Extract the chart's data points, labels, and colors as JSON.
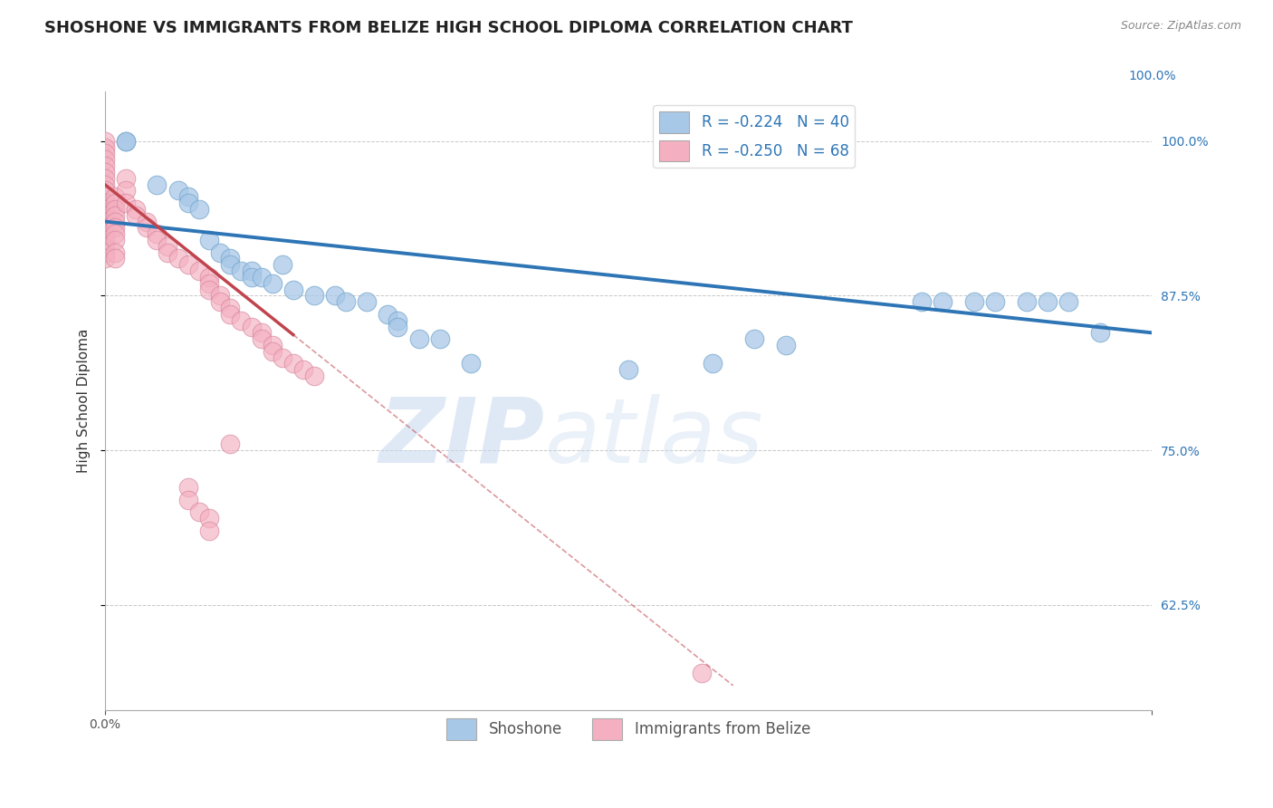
{
  "title": "SHOSHONE VS IMMIGRANTS FROM BELIZE HIGH SCHOOL DIPLOMA CORRELATION CHART",
  "source_text": "Source: ZipAtlas.com",
  "ylabel": "High School Diploma",
  "xlim": [
    0.0,
    1.0
  ],
  "ylim": [
    0.54,
    1.04
  ],
  "ytick_values": [
    0.625,
    0.75,
    0.875,
    1.0
  ],
  "ytick_labels": [
    "62.5%",
    "75.0%",
    "87.5%",
    "100.0%"
  ],
  "xtick_values": [
    0.0,
    1.0
  ],
  "xtick_labels": [
    "0.0%",
    "100.0%"
  ],
  "blue_color": "#a8c8e8",
  "pink_color": "#f4b0c0",
  "blue_line_color": "#2e75b6",
  "pink_line_color": "#c0444e",
  "legend_r_color": "#2e75b6",
  "legend_r_blue": "R = -0.224",
  "legend_n_blue": "N = 40",
  "legend_r_pink": "R = -0.250",
  "legend_n_pink": "N = 68",
  "label_shoshone": "Shoshone",
  "label_belize": "Immigrants from Belize",
  "watermark_zip": "ZIP",
  "watermark_atlas": "atlas",
  "grid_color": "#b0b0b0",
  "background_color": "#ffffff",
  "title_fontsize": 13,
  "axis_label_fontsize": 11,
  "tick_fontsize": 10,
  "legend_fontsize": 12,
  "watermark_color_zip": "#c8d8ee",
  "watermark_color_atlas": "#c8d8ee",
  "right_tick_color": "#2e75b6",
  "blue_scatter_x": [
    0.02,
    0.02,
    0.05,
    0.07,
    0.08,
    0.08,
    0.09,
    0.1,
    0.11,
    0.12,
    0.12,
    0.13,
    0.14,
    0.14,
    0.15,
    0.16,
    0.17,
    0.18,
    0.2,
    0.22,
    0.23,
    0.25,
    0.27,
    0.28,
    0.28,
    0.3,
    0.32,
    0.35,
    0.5,
    0.58,
    0.62,
    0.65,
    0.78,
    0.8,
    0.83,
    0.85,
    0.88,
    0.9,
    0.92,
    0.95
  ],
  "blue_scatter_y": [
    1.0,
    1.0,
    0.965,
    0.96,
    0.955,
    0.95,
    0.945,
    0.92,
    0.91,
    0.905,
    0.9,
    0.895,
    0.895,
    0.89,
    0.89,
    0.885,
    0.9,
    0.88,
    0.875,
    0.875,
    0.87,
    0.87,
    0.86,
    0.855,
    0.85,
    0.84,
    0.84,
    0.82,
    0.815,
    0.82,
    0.84,
    0.835,
    0.87,
    0.87,
    0.87,
    0.87,
    0.87,
    0.87,
    0.87,
    0.845
  ],
  "pink_scatter_x": [
    0.0,
    0.0,
    0.0,
    0.0,
    0.0,
    0.0,
    0.0,
    0.0,
    0.0,
    0.0,
    0.0,
    0.0,
    0.0,
    0.0,
    0.0,
    0.0,
    0.0,
    0.0,
    0.0,
    0.0,
    0.01,
    0.01,
    0.01,
    0.01,
    0.01,
    0.01,
    0.01,
    0.01,
    0.01,
    0.01,
    0.02,
    0.02,
    0.02,
    0.03,
    0.03,
    0.04,
    0.04,
    0.05,
    0.05,
    0.06,
    0.06,
    0.07,
    0.08,
    0.09,
    0.1,
    0.1,
    0.1,
    0.11,
    0.11,
    0.12,
    0.12,
    0.13,
    0.14,
    0.15,
    0.15,
    0.16,
    0.16,
    0.17,
    0.18,
    0.19,
    0.2,
    0.12,
    0.08,
    0.08,
    0.09,
    0.1,
    0.57,
    0.1
  ],
  "pink_scatter_y": [
    1.0,
    0.995,
    0.99,
    0.985,
    0.98,
    0.975,
    0.97,
    0.965,
    0.96,
    0.955,
    0.95,
    0.945,
    0.94,
    0.935,
    0.93,
    0.925,
    0.92,
    0.915,
    0.91,
    0.905,
    0.955,
    0.95,
    0.945,
    0.94,
    0.935,
    0.93,
    0.925,
    0.92,
    0.91,
    0.905,
    0.97,
    0.96,
    0.95,
    0.945,
    0.94,
    0.935,
    0.93,
    0.925,
    0.92,
    0.915,
    0.91,
    0.905,
    0.9,
    0.895,
    0.89,
    0.885,
    0.88,
    0.875,
    0.87,
    0.865,
    0.86,
    0.855,
    0.85,
    0.845,
    0.84,
    0.835,
    0.83,
    0.825,
    0.82,
    0.815,
    0.81,
    0.755,
    0.72,
    0.71,
    0.7,
    0.695,
    0.57,
    0.685
  ]
}
